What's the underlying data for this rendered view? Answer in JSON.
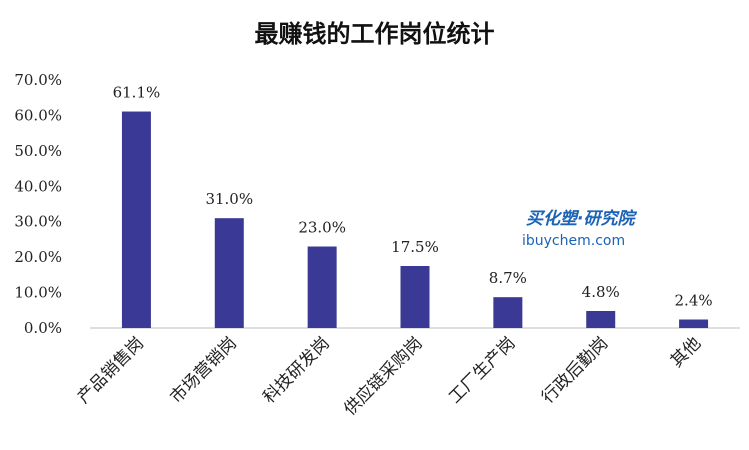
{
  "chart_data": {
    "type": "bar",
    "title": "最赚钱的工作岗位统计",
    "categories": [
      "产品销售岗",
      "市场营销岗",
      "科技研发岗",
      "供应链采购岗",
      "工厂生产岗",
      "行政后勤岗",
      "其他"
    ],
    "values": [
      61.1,
      31.0,
      23.0,
      17.5,
      8.7,
      4.8,
      2.4
    ],
    "data_labels": [
      "61.1%",
      "31.0%",
      "23.0%",
      "17.5%",
      "8.7%",
      "4.8%",
      "2.4%"
    ],
    "y_ticks": [
      "0.0%",
      "10.0%",
      "20.0%",
      "30.0%",
      "40.0%",
      "50.0%",
      "60.0%",
      "70.0%"
    ],
    "ylim": [
      0,
      70
    ],
    "bar_color": "#3a3a96",
    "grid": false,
    "legend": "none"
  },
  "watermark": {
    "line1": "买化塑·研究院",
    "line2": "ibuychem.com",
    "color": "#1b63b5"
  }
}
